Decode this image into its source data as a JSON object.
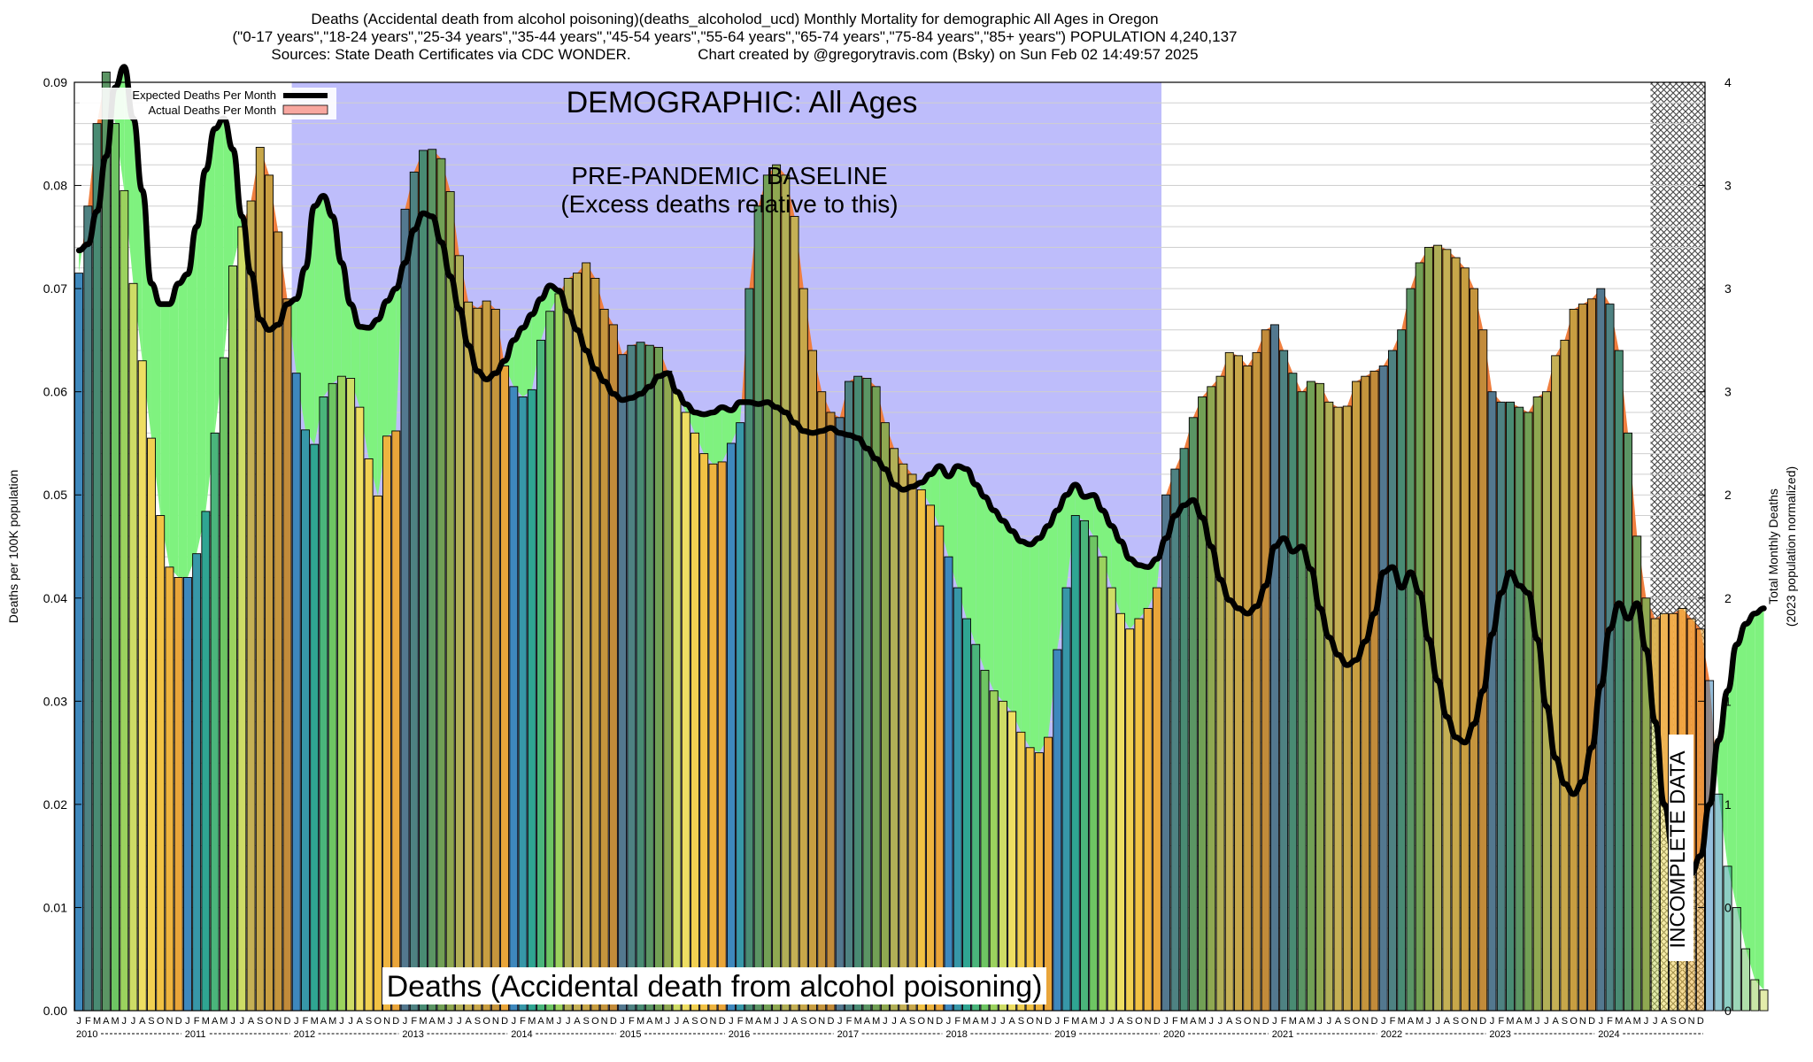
{
  "header": {
    "line1": "Deaths (Accidental death from alcohol poisoning)(deaths_alcoholod_ucd) Monthly Mortality for demographic All Ages in Oregon",
    "line2": "(\"0-17 years\",\"18-24 years\",\"25-34 years\",\"35-44 years\",\"45-54 years\",\"55-64 years\",\"65-74 years\",\"75-84 years\",\"85+ years\") POPULATION 4,240,137",
    "line3": "Sources: State Death Certificates via CDC WONDER.                Chart created by @gregorytravis.com (Bsky) on Sun Feb 02 14:49:57 2025"
  },
  "chart_data": {
    "type": "bar",
    "title": "Deaths (Accidental death from alcohol poisoning)(deaths_alcoholod_ucd) Monthly Mortality for demographic All Ages in Oregon",
    "ylabel": "Deaths per 100K population",
    "y2label_line1": "Total Monthly Deaths",
    "y2label_line2": "(2023 population normalized)",
    "ylim": [
      0,
      0.09
    ],
    "yticks": [
      "0.00",
      "0.01",
      "0.02",
      "0.03",
      "0.04",
      "0.05",
      "0.06",
      "0.07",
      "0.08",
      "0.09"
    ],
    "y2ticks": [
      "0",
      "0",
      "1",
      "1",
      "2",
      "2",
      "3",
      "3",
      "3",
      "4"
    ],
    "month_letters": [
      "J",
      "F",
      "M",
      "A",
      "M",
      "J",
      "J",
      "A",
      "S",
      "O",
      "N",
      "D"
    ],
    "years": [
      "2010",
      "2011",
      "2012",
      "2013",
      "2014",
      "2015",
      "2016",
      "2017",
      "2018",
      "2019",
      "2020",
      "2021",
      "2022",
      "2023",
      "2024"
    ],
    "start": "2010-01",
    "legend": {
      "position": "top-left",
      "expected": "Expected Deaths Per Month",
      "actual": "Actual Deaths Per Month"
    },
    "demographic_label": "DEMOGRAPHIC: All Ages",
    "baseline_label_1": "PRE-PANDEMIC BASELINE",
    "baseline_label_2": "(Excess deaths relative to this)",
    "baseline_period": [
      "2012-01",
      "2019-12"
    ],
    "incomplete_label": "INCOMPLETE DATA",
    "incomplete_from": "2024-07",
    "bottom_label": "Deaths (Accidental death from alcohol poisoning)",
    "grid": true,
    "colors": {
      "baseline_shade": "#bebdfb",
      "below_expected": "#7ff27f",
      "above_expected": "#ef7f3f",
      "expected_line": "#000000",
      "actual_fill": "#f8a7a0",
      "bar_ramp": [
        "#3e88bd",
        "#2ea88e",
        "#7ccb5a",
        "#ede36a",
        "#f3c545",
        "#e9a53a"
      ]
    },
    "actual": [
      0.0715,
      0.078,
      0.086,
      0.091,
      0.086,
      0.0795,
      0.0705,
      0.063,
      0.0555,
      0.048,
      0.043,
      0.042,
      0.042,
      0.0443,
      0.0484,
      0.056,
      0.0633,
      0.0722,
      0.076,
      0.0785,
      0.0837,
      0.081,
      0.0755,
      0.069,
      0.0618,
      0.0563,
      0.0549,
      0.0595,
      0.0608,
      0.0615,
      0.0613,
      0.0585,
      0.0535,
      0.0499,
      0.0557,
      0.0562,
      0.0777,
      0.0813,
      0.0834,
      0.0835,
      0.0826,
      0.0794,
      0.0732,
      0.0687,
      0.0681,
      0.0688,
      0.068,
      0.0625,
      0.0605,
      0.0595,
      0.0602,
      0.065,
      0.0678,
      0.0695,
      0.071,
      0.0715,
      0.0725,
      0.071,
      0.068,
      0.0665,
      0.0636,
      0.0645,
      0.0648,
      0.0645,
      0.0643,
      0.062,
      0.06,
      0.058,
      0.056,
      0.054,
      0.053,
      0.0532,
      0.055,
      0.057,
      0.07,
      0.078,
      0.081,
      0.082,
      0.081,
      0.077,
      0.07,
      0.064,
      0.06,
      0.058,
      0.0575,
      0.061,
      0.0615,
      0.0613,
      0.0605,
      0.057,
      0.0545,
      0.053,
      0.052,
      0.0505,
      0.049,
      0.047,
      0.044,
      0.041,
      0.038,
      0.0355,
      0.033,
      0.031,
      0.03,
      0.029,
      0.027,
      0.0255,
      0.025,
      0.0265,
      0.035,
      0.041,
      0.048,
      0.0475,
      0.046,
      0.044,
      0.041,
      0.0385,
      0.037,
      0.038,
      0.039,
      0.041,
      0.05,
      0.0525,
      0.0545,
      0.0575,
      0.0595,
      0.0605,
      0.0615,
      0.0638,
      0.0635,
      0.0625,
      0.0638,
      0.066,
      0.0665,
      0.064,
      0.0618,
      0.06,
      0.061,
      0.0608,
      0.059,
      0.0585,
      0.0586,
      0.061,
      0.0615,
      0.062,
      0.0625,
      0.064,
      0.066,
      0.07,
      0.0725,
      0.074,
      0.0742,
      0.0738,
      0.073,
      0.072,
      0.07,
      0.066,
      0.06,
      0.059,
      0.059,
      0.0585,
      0.058,
      0.0595,
      0.06,
      0.0635,
      0.065,
      0.068,
      0.0685,
      0.069,
      0.07,
      0.0685,
      0.064,
      0.056,
      0.046,
      0.04,
      0.038,
      0.0385,
      0.0385,
      0.039,
      0.038,
      0.037,
      0.032,
      0.021,
      0.014,
      0.01,
      0.006,
      0.003,
      0.002
    ],
    "expected": [
      0.0737,
      0.0743,
      0.0775,
      0.0828,
      0.0895,
      0.0915,
      0.0865,
      0.0795,
      0.0705,
      0.0685,
      0.0685,
      0.0705,
      0.0714,
      0.076,
      0.0815,
      0.0855,
      0.0865,
      0.0835,
      0.077,
      0.0715,
      0.067,
      0.066,
      0.0665,
      0.0685,
      0.069,
      0.072,
      0.078,
      0.079,
      0.077,
      0.0725,
      0.0685,
      0.0663,
      0.0662,
      0.067,
      0.0688,
      0.07,
      0.0725,
      0.0757,
      0.0773,
      0.077,
      0.0745,
      0.0712,
      0.068,
      0.0645,
      0.062,
      0.0612,
      0.0618,
      0.063,
      0.065,
      0.0662,
      0.0675,
      0.069,
      0.0703,
      0.0698,
      0.0678,
      0.066,
      0.064,
      0.0622,
      0.061,
      0.0598,
      0.0592,
      0.0594,
      0.0598,
      0.0605,
      0.0615,
      0.0618,
      0.06,
      0.0588,
      0.058,
      0.0578,
      0.058,
      0.0585,
      0.0582,
      0.059,
      0.059,
      0.0588,
      0.059,
      0.0585,
      0.058,
      0.057,
      0.0562,
      0.056,
      0.0562,
      0.0565,
      0.056,
      0.0558,
      0.0555,
      0.0545,
      0.0535,
      0.0525,
      0.051,
      0.0505,
      0.0508,
      0.0512,
      0.052,
      0.0528,
      0.0518,
      0.0528,
      0.0525,
      0.051,
      0.0498,
      0.0485,
      0.0475,
      0.0465,
      0.0455,
      0.0452,
      0.0458,
      0.047,
      0.0485,
      0.05,
      0.051,
      0.0498,
      0.05,
      0.0485,
      0.047,
      0.0455,
      0.0438,
      0.0432,
      0.043,
      0.0438,
      0.0458,
      0.048,
      0.049,
      0.0495,
      0.0478,
      0.045,
      0.0418,
      0.0398,
      0.039,
      0.0385,
      0.0392,
      0.0412,
      0.045,
      0.0458,
      0.0445,
      0.045,
      0.0428,
      0.039,
      0.0362,
      0.0345,
      0.0335,
      0.034,
      0.0358,
      0.0385,
      0.0425,
      0.043,
      0.041,
      0.0425,
      0.0405,
      0.036,
      0.032,
      0.0285,
      0.0265,
      0.026,
      0.0278,
      0.031,
      0.0365,
      0.0405,
      0.0425,
      0.0412,
      0.0405,
      0.036,
      0.0295,
      0.0245,
      0.022,
      0.021,
      0.0222,
      0.0255,
      0.0315,
      0.037,
      0.0395,
      0.038,
      0.0395,
      0.035,
      0.028,
      0.02,
      0.0155,
      0.0135,
      0.0133,
      0.015,
      0.02,
      0.0262,
      0.031,
      0.0355,
      0.0375,
      0.0385,
      0.039
    ]
  }
}
